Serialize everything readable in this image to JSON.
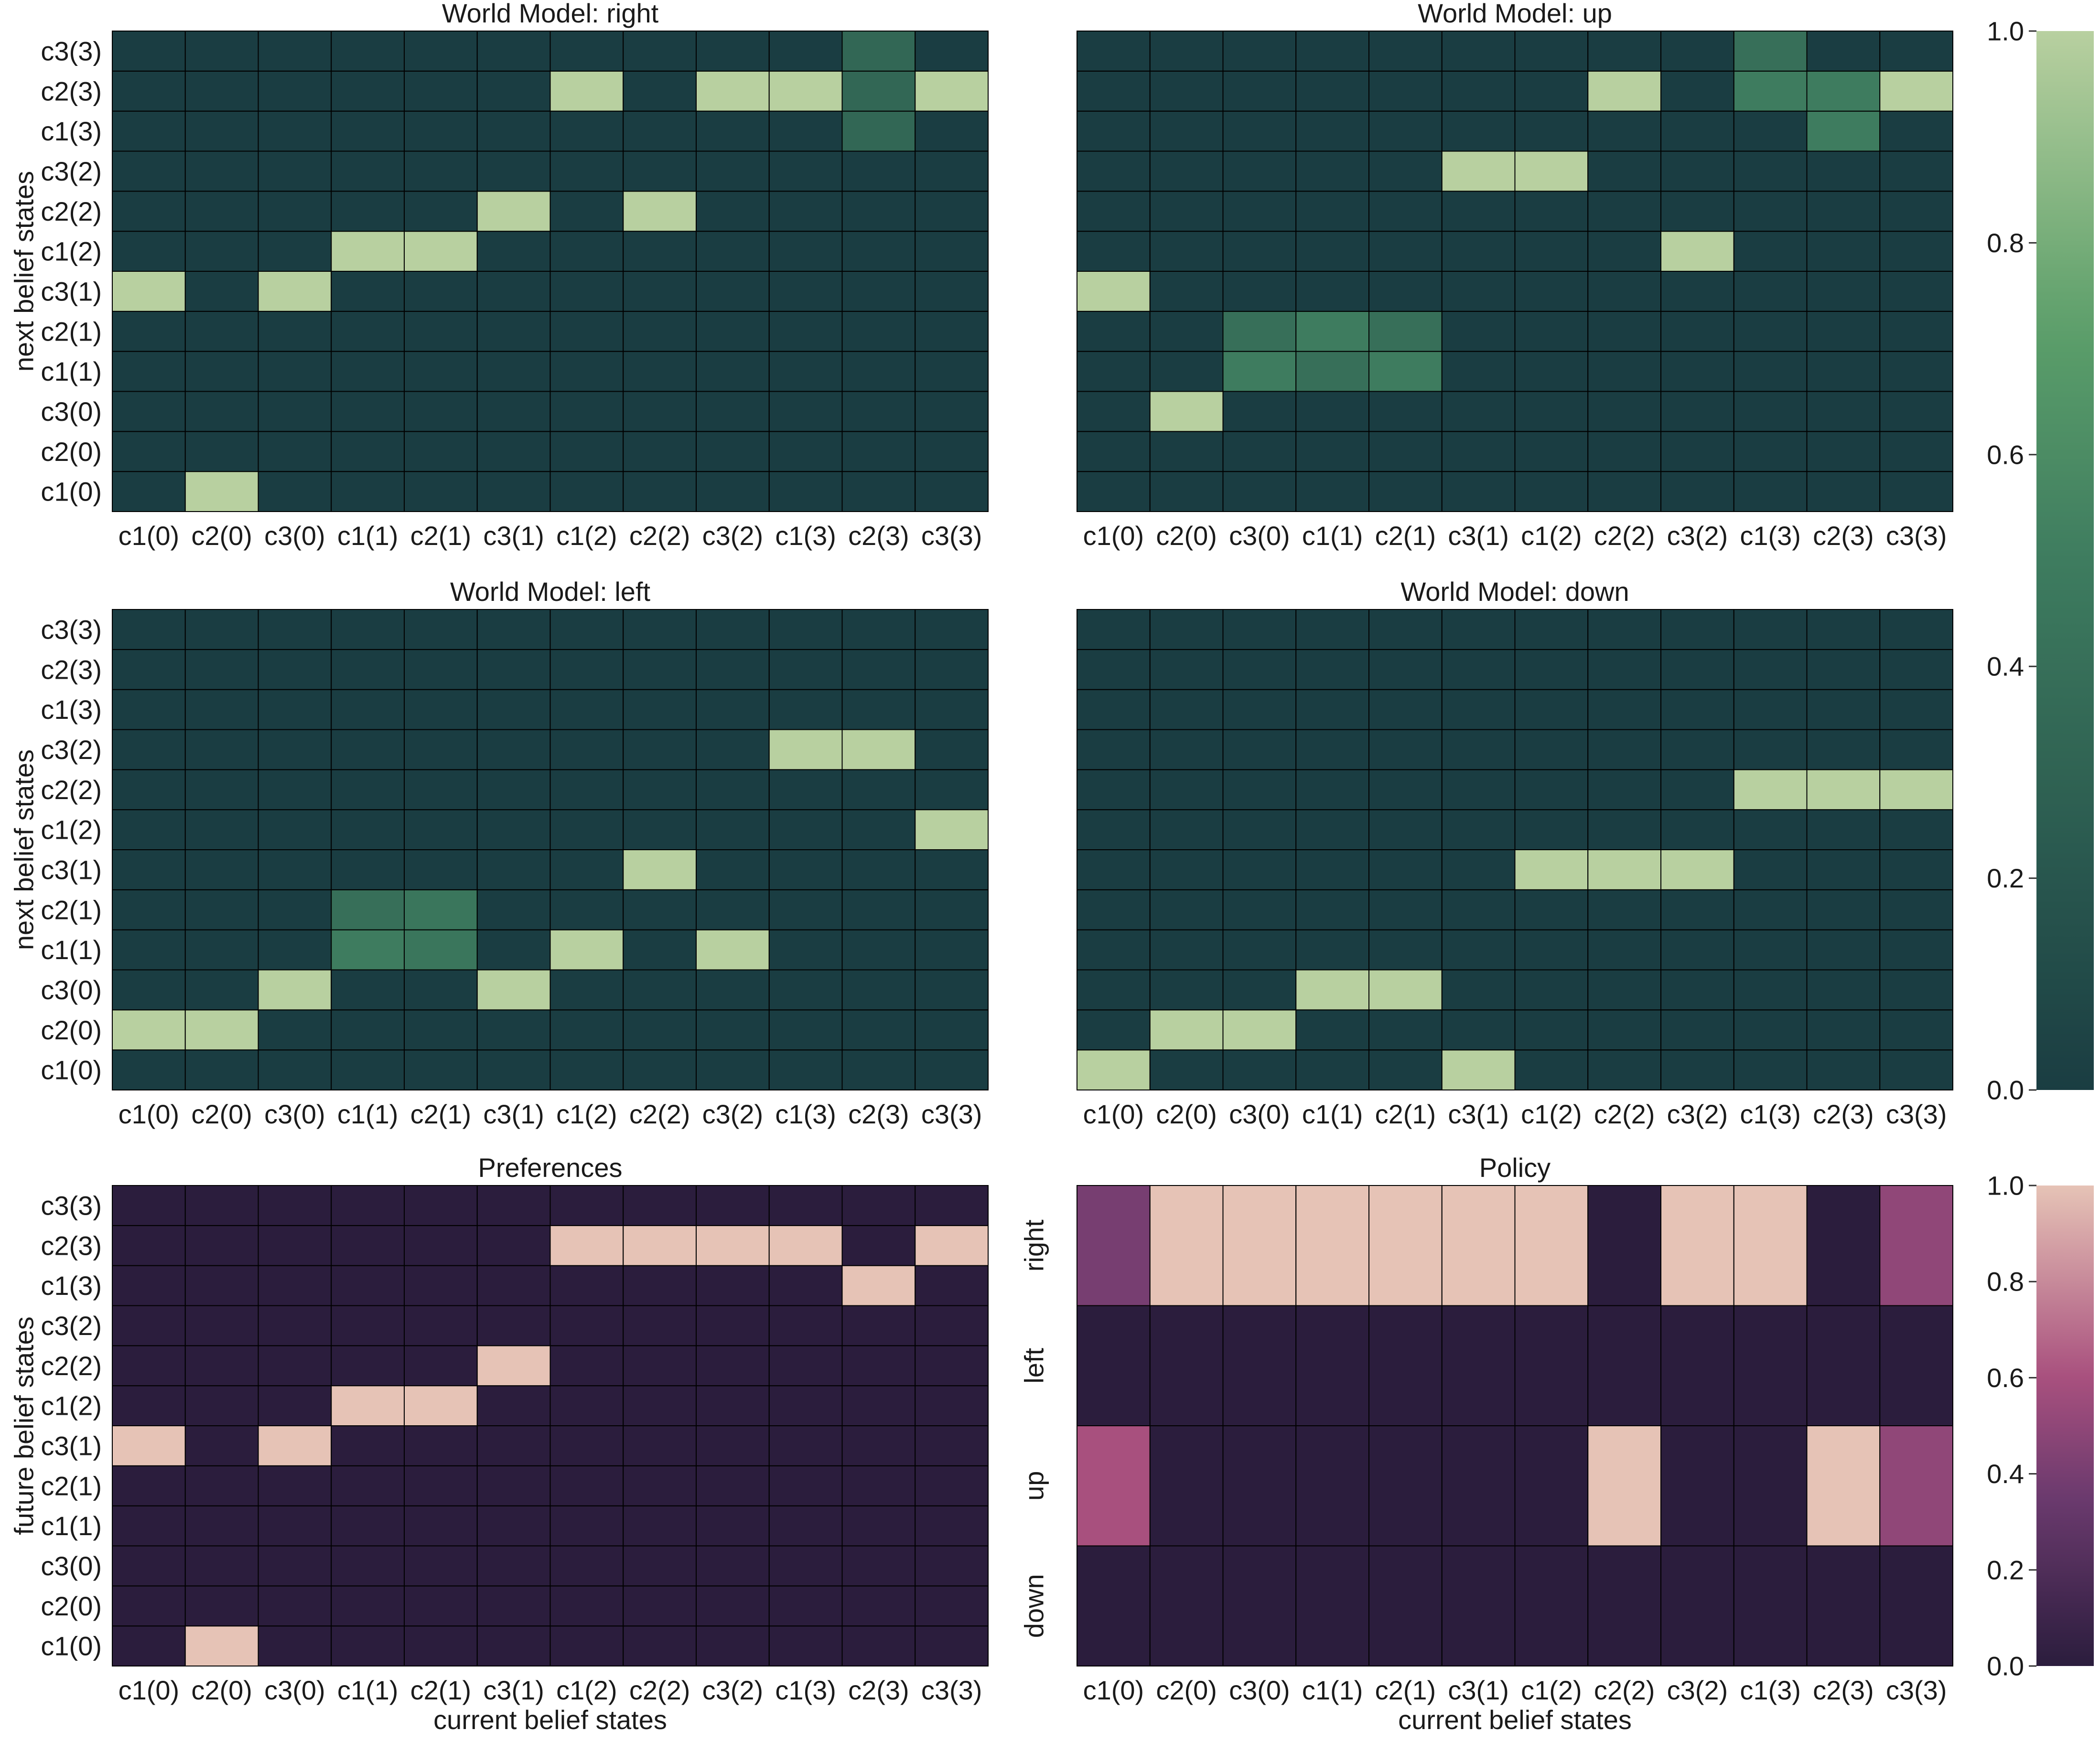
{
  "chart_data": {
    "type": "heatmap",
    "state_labels": [
      "c1(0)",
      "c2(0)",
      "c3(0)",
      "c1(1)",
      "c2(1)",
      "c3(1)",
      "c1(2)",
      "c2(2)",
      "c3(2)",
      "c1(3)",
      "c2(3)",
      "c3(3)"
    ],
    "panels": [
      {
        "title": "World Model: right",
        "ylabel": "next belief states",
        "xlabel": "",
        "colormap": "green",
        "x_labels": [
          "c1(0)",
          "c2(0)",
          "c3(0)",
          "c1(1)",
          "c2(1)",
          "c3(1)",
          "c1(2)",
          "c2(2)",
          "c3(2)",
          "c1(3)",
          "c2(3)",
          "c3(3)"
        ],
        "y_labels": [
          "c1(0)",
          "c2(0)",
          "c3(0)",
          "c1(1)",
          "c2(1)",
          "c3(1)",
          "c1(2)",
          "c2(2)",
          "c3(2)",
          "c1(3)",
          "c2(3)",
          "c3(3)"
        ],
        "values": [
          [
            0,
            1,
            0,
            0,
            0,
            0,
            0,
            0,
            0,
            0,
            0,
            0
          ],
          [
            0,
            0,
            0,
            0,
            0,
            0,
            0,
            0,
            0,
            0,
            0,
            0
          ],
          [
            0,
            0,
            0,
            0,
            0,
            0,
            0,
            0,
            0,
            0,
            0,
            0
          ],
          [
            0,
            0,
            0,
            0,
            0,
            0,
            0,
            0,
            0,
            0,
            0,
            0
          ],
          [
            0,
            0,
            0,
            0,
            0,
            0,
            0,
            0,
            0,
            0,
            0,
            0
          ],
          [
            1,
            0,
            1,
            0,
            0,
            0,
            0,
            0,
            0,
            0,
            0,
            0
          ],
          [
            0,
            0,
            0,
            1,
            1,
            0,
            0,
            0,
            0,
            0,
            0,
            0
          ],
          [
            0,
            0,
            0,
            0,
            0,
            1,
            0,
            1,
            0,
            0,
            0,
            0
          ],
          [
            0,
            0,
            0,
            0,
            0,
            0,
            0,
            0,
            0,
            0,
            0,
            0
          ],
          [
            0,
            0,
            0,
            0,
            0,
            0,
            0,
            0,
            0,
            0,
            0.33,
            0
          ],
          [
            0,
            0,
            0,
            0,
            0,
            0,
            1,
            0,
            1,
            1,
            0.33,
            1
          ],
          [
            0,
            0,
            0,
            0,
            0,
            0,
            0,
            0,
            0,
            0,
            0.33,
            0
          ]
        ]
      },
      {
        "title": "World Model: up",
        "ylabel": "",
        "xlabel": "",
        "colormap": "green",
        "x_labels": [
          "c1(0)",
          "c2(0)",
          "c3(0)",
          "c1(1)",
          "c2(1)",
          "c3(1)",
          "c1(2)",
          "c2(2)",
          "c3(2)",
          "c1(3)",
          "c2(3)",
          "c3(3)"
        ],
        "y_labels": [],
        "values": [
          [
            0,
            0,
            0,
            0,
            0,
            0,
            0,
            0,
            0,
            0,
            0,
            0
          ],
          [
            0,
            0,
            0,
            0,
            0,
            0,
            0,
            0,
            0,
            0,
            0,
            0
          ],
          [
            0,
            1,
            0,
            0,
            0,
            0,
            0,
            0,
            0,
            0,
            0,
            0
          ],
          [
            0,
            0,
            0.5,
            0.4,
            0.5,
            0,
            0,
            0,
            0,
            0,
            0,
            0
          ],
          [
            0,
            0,
            0.4,
            0.5,
            0.4,
            0,
            0,
            0,
            0,
            0,
            0,
            0
          ],
          [
            1,
            0,
            0,
            0,
            0,
            0,
            0,
            0,
            0,
            0,
            0,
            0
          ],
          [
            0,
            0,
            0,
            0,
            0,
            0,
            0,
            0,
            1,
            0,
            0,
            0
          ],
          [
            0,
            0,
            0,
            0,
            0,
            0,
            0,
            0,
            0,
            0,
            0,
            0
          ],
          [
            0,
            0,
            0,
            0,
            0,
            1,
            1,
            0,
            0,
            0,
            0,
            0
          ],
          [
            0,
            0,
            0,
            0,
            0,
            0,
            0,
            0,
            0,
            0,
            0.5,
            0
          ],
          [
            0,
            0,
            0,
            0,
            0,
            0,
            0,
            1,
            0,
            0.5,
            0.5,
            1
          ],
          [
            0,
            0,
            0,
            0,
            0,
            0,
            0,
            0,
            0,
            0.4,
            0,
            0
          ]
        ]
      },
      {
        "title": "World Model: left",
        "ylabel": "next belief states",
        "xlabel": "",
        "colormap": "green",
        "x_labels": [
          "c1(0)",
          "c2(0)",
          "c3(0)",
          "c1(1)",
          "c2(1)",
          "c3(1)",
          "c1(2)",
          "c2(2)",
          "c3(2)",
          "c1(3)",
          "c2(3)",
          "c3(3)"
        ],
        "y_labels": [
          "c1(0)",
          "c2(0)",
          "c3(0)",
          "c1(1)",
          "c2(1)",
          "c3(1)",
          "c1(2)",
          "c2(2)",
          "c3(2)",
          "c1(3)",
          "c2(3)",
          "c3(3)"
        ],
        "values": [
          [
            0,
            0,
            0,
            0,
            0,
            0,
            0,
            0,
            0,
            0,
            0,
            0
          ],
          [
            1,
            1,
            0,
            0,
            0,
            0,
            0,
            0,
            0,
            0,
            0,
            0
          ],
          [
            0,
            0,
            1,
            0,
            0,
            1,
            0,
            0,
            0,
            0,
            0,
            0
          ],
          [
            0,
            0,
            0,
            0.5,
            0.45,
            0,
            1,
            0,
            1,
            0,
            0,
            0
          ],
          [
            0,
            0,
            0,
            0.4,
            0.45,
            0,
            0,
            0,
            0,
            0,
            0,
            0
          ],
          [
            0,
            0,
            0,
            0,
            0,
            0,
            0,
            1,
            0,
            0,
            0,
            0
          ],
          [
            0,
            0,
            0,
            0,
            0,
            0,
            0,
            0,
            0,
            0,
            0,
            1
          ],
          [
            0,
            0,
            0,
            0,
            0,
            0,
            0,
            0,
            0,
            0,
            0,
            0
          ],
          [
            0,
            0,
            0,
            0,
            0,
            0,
            0,
            0,
            0,
            1,
            1,
            0
          ],
          [
            0,
            0,
            0,
            0,
            0,
            0,
            0,
            0,
            0,
            0,
            0,
            0
          ],
          [
            0,
            0,
            0,
            0,
            0,
            0,
            0,
            0,
            0,
            0,
            0,
            0
          ],
          [
            0,
            0,
            0,
            0,
            0,
            0,
            0,
            0,
            0,
            0,
            0,
            0
          ]
        ]
      },
      {
        "title": "World Model: down",
        "ylabel": "",
        "xlabel": "",
        "colormap": "green",
        "x_labels": [
          "c1(0)",
          "c2(0)",
          "c3(0)",
          "c1(1)",
          "c2(1)",
          "c3(1)",
          "c1(2)",
          "c2(2)",
          "c3(2)",
          "c1(3)",
          "c2(3)",
          "c3(3)"
        ],
        "y_labels": [],
        "values": [
          [
            1,
            0,
            0,
            0,
            0,
            1,
            0,
            0,
            0,
            0,
            0,
            0
          ],
          [
            0,
            1,
            1,
            0,
            0,
            0,
            0,
            0,
            0,
            0,
            0,
            0
          ],
          [
            0,
            0,
            0,
            1,
            1,
            0,
            0,
            0,
            0,
            0,
            0,
            0
          ],
          [
            0,
            0,
            0,
            0,
            0,
            0,
            0,
            0,
            0,
            0,
            0,
            0
          ],
          [
            0,
            0,
            0,
            0,
            0,
            0,
            0,
            0,
            0,
            0,
            0,
            0
          ],
          [
            0,
            0,
            0,
            0,
            0,
            0,
            1,
            1,
            1,
            0,
            0,
            0
          ],
          [
            0,
            0,
            0,
            0,
            0,
            0,
            0,
            0,
            0,
            0,
            0,
            0
          ],
          [
            0,
            0,
            0,
            0,
            0,
            0,
            0,
            0,
            0,
            1,
            1,
            1
          ],
          [
            0,
            0,
            0,
            0,
            0,
            0,
            0,
            0,
            0,
            0,
            0,
            0
          ],
          [
            0,
            0,
            0,
            0,
            0,
            0,
            0,
            0,
            0,
            0,
            0,
            0
          ],
          [
            0,
            0,
            0,
            0,
            0,
            0,
            0,
            0,
            0,
            0,
            0,
            0
          ],
          [
            0,
            0,
            0,
            0,
            0,
            0,
            0,
            0,
            0,
            0,
            0,
            0
          ]
        ]
      },
      {
        "title": "Preferences",
        "ylabel": "future belief states",
        "xlabel": "current belief states",
        "colormap": "purple",
        "x_labels": [
          "c1(0)",
          "c2(0)",
          "c3(0)",
          "c1(1)",
          "c2(1)",
          "c3(1)",
          "c1(2)",
          "c2(2)",
          "c3(2)",
          "c1(3)",
          "c2(3)",
          "c3(3)"
        ],
        "y_labels": [
          "c1(0)",
          "c2(0)",
          "c3(0)",
          "c1(1)",
          "c2(1)",
          "c3(1)",
          "c1(2)",
          "c2(2)",
          "c3(2)",
          "c1(3)",
          "c2(3)",
          "c3(3)"
        ],
        "values": [
          [
            0,
            1,
            0,
            0,
            0,
            0,
            0,
            0,
            0,
            0,
            0,
            0
          ],
          [
            0,
            0,
            0,
            0,
            0,
            0,
            0,
            0,
            0,
            0,
            0,
            0
          ],
          [
            0,
            0,
            0,
            0,
            0,
            0,
            0,
            0,
            0,
            0,
            0,
            0
          ],
          [
            0,
            0,
            0,
            0,
            0,
            0,
            0,
            0,
            0,
            0,
            0,
            0
          ],
          [
            0,
            0,
            0,
            0,
            0,
            0,
            0,
            0,
            0,
            0,
            0,
            0
          ],
          [
            1,
            0,
            1,
            0,
            0,
            0,
            0,
            0,
            0,
            0,
            0,
            0
          ],
          [
            0,
            0,
            0,
            1,
            1,
            0,
            0,
            0,
            0,
            0,
            0,
            0
          ],
          [
            0,
            0,
            0,
            0,
            0,
            1,
            0,
            0,
            0,
            0,
            0,
            0
          ],
          [
            0,
            0,
            0,
            0,
            0,
            0,
            0,
            0,
            0,
            0,
            0,
            0
          ],
          [
            0,
            0,
            0,
            0,
            0,
            0,
            0,
            0,
            0,
            0,
            1,
            0
          ],
          [
            0,
            0,
            0,
            0,
            0,
            0,
            1,
            1,
            1,
            1,
            0,
            1
          ],
          [
            0,
            0,
            0,
            0,
            0,
            0,
            0,
            0,
            0,
            0,
            0,
            0
          ]
        ]
      },
      {
        "title": "Policy",
        "ylabel": "",
        "xlabel": "current belief states",
        "colormap": "purple",
        "x_labels": [
          "c1(0)",
          "c2(0)",
          "c3(0)",
          "c1(1)",
          "c2(1)",
          "c3(1)",
          "c1(2)",
          "c2(2)",
          "c3(2)",
          "c1(3)",
          "c2(3)",
          "c3(3)"
        ],
        "y_labels": [
          "down",
          "up",
          "left",
          "right"
        ],
        "values": [
          [
            0,
            0,
            0,
            0,
            0,
            0,
            0,
            0,
            0,
            0,
            0,
            0
          ],
          [
            0.6,
            0,
            0,
            0,
            0,
            0,
            0,
            1,
            0,
            0,
            1,
            0.5
          ],
          [
            0,
            0,
            0,
            0,
            0,
            0,
            0,
            0,
            0,
            0,
            0,
            0
          ],
          [
            0.4,
            1,
            1,
            1,
            1,
            1,
            1,
            0,
            1,
            1,
            0,
            0.5
          ]
        ]
      }
    ],
    "colorbars": [
      {
        "colormap": "green",
        "range": [
          0.0,
          1.0
        ],
        "ticks": [
          "0.0",
          "0.2",
          "0.4",
          "0.6",
          "0.8",
          "1.0"
        ]
      },
      {
        "colormap": "purple",
        "range": [
          0.0,
          1.0
        ],
        "ticks": [
          "0.0",
          "0.2",
          "0.4",
          "0.6",
          "0.8",
          "1.0"
        ]
      }
    ],
    "colors": {
      "green_low": "#1a3d42",
      "green_mid": "#5c9f6a",
      "green_high": "#b8d0a0",
      "purple_low": "#2b1d3d",
      "purple_mid": "#a8507e",
      "purple_high": "#e6c3b6"
    }
  }
}
